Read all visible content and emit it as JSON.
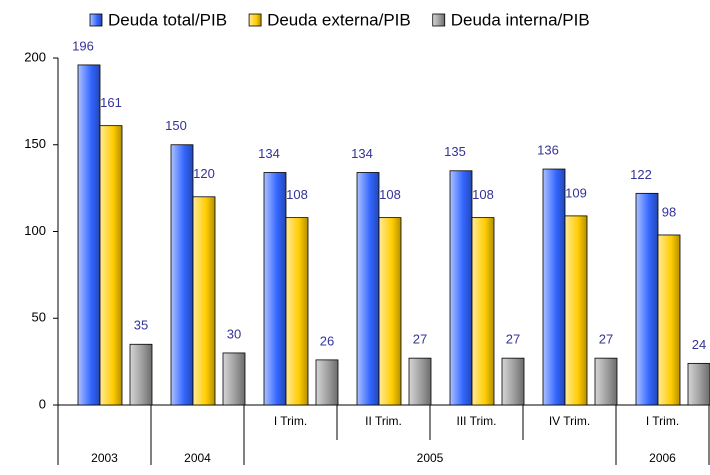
{
  "chart_data": {
    "type": "bar",
    "categories": [
      null,
      null,
      "I Trim.",
      "II Trim.",
      "III Trim.",
      "IV Trim.",
      "I Trim."
    ],
    "groups": [
      {
        "label": "2003",
        "count": 1
      },
      {
        "label": "2004",
        "count": 1
      },
      {
        "label": "2005",
        "count": 4
      },
      {
        "label": "2006",
        "count": 1
      }
    ],
    "series": [
      {
        "name": "Deuda total/PIB",
        "color": "#3366ff",
        "values": [
          196,
          150,
          134,
          134,
          135,
          136,
          122
        ]
      },
      {
        "name": "Deuda externa/PIB",
        "color": "#ffcc00",
        "values": [
          161,
          120,
          108,
          108,
          108,
          109,
          98
        ]
      },
      {
        "name": "Deuda interna/PIB",
        "color": "#999999",
        "values": [
          35,
          30,
          26,
          27,
          27,
          27,
          24
        ]
      }
    ],
    "ylim": [
      0,
      200
    ],
    "yticks": [
      0,
      50,
      100,
      150,
      200
    ],
    "grid": false
  }
}
